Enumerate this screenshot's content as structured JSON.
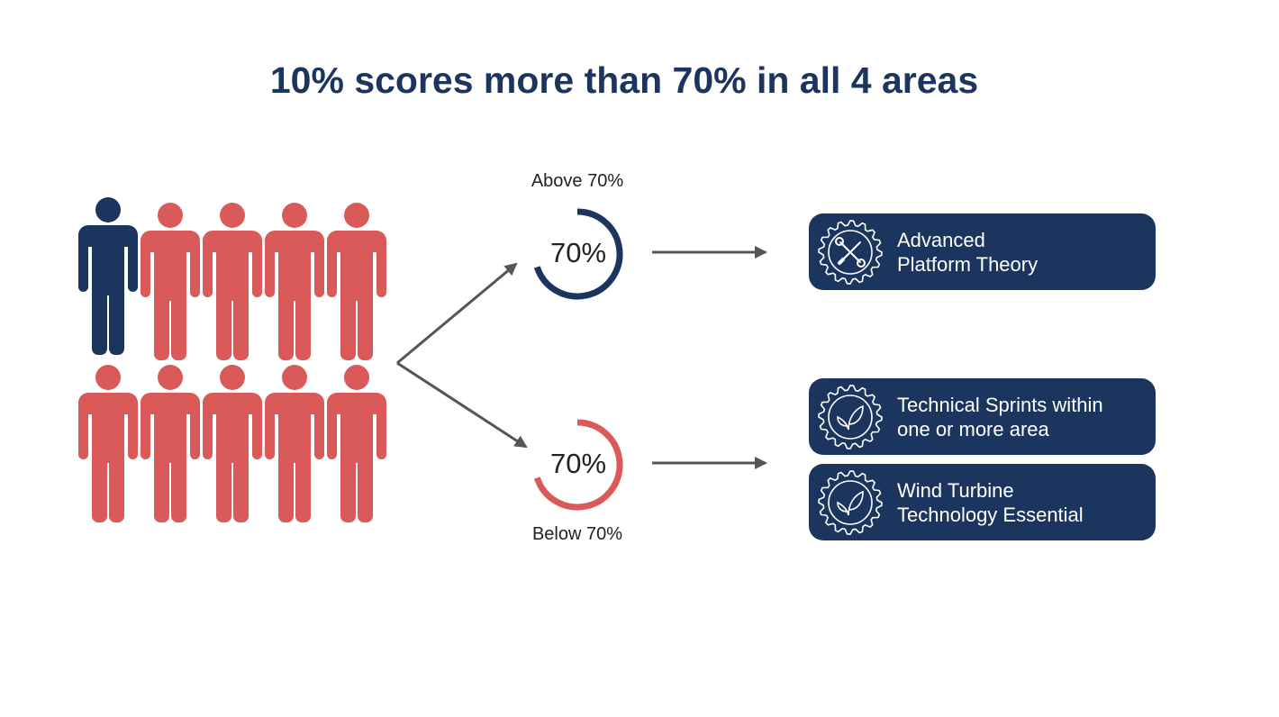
{
  "title": "10% scores more than 70% in all 4 areas",
  "people": {
    "total": 10,
    "highlighted": 1,
    "highlight_color": "#1c355e",
    "other_color": "#d95a59"
  },
  "above": {
    "label": "Above 70%",
    "value_text": "70%",
    "fraction": 0.7,
    "color": "#1c355e"
  },
  "below": {
    "label": "Below 70%",
    "value_text": "70%",
    "fraction": 0.7,
    "color": "#d95a59"
  },
  "programs": [
    {
      "line1": "Advanced",
      "line2": "Platform Theory",
      "icon": "gear-tools-icon"
    },
    {
      "line1": "Technical Sprints within",
      "line2": "one or more area",
      "icon": "gear-leaf-icon"
    },
    {
      "line1": "Wind Turbine",
      "line2": "Technology Essential",
      "icon": "gear-leaf-icon"
    }
  ],
  "box_color": "#1c355e"
}
